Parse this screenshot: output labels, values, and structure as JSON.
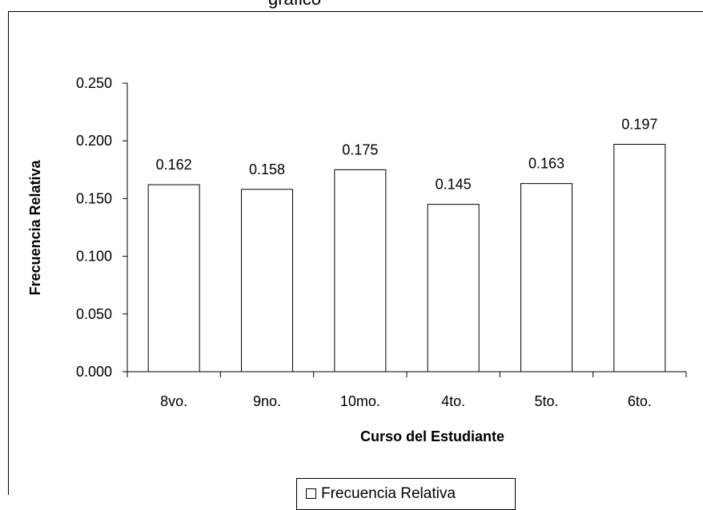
{
  "chart_data": {
    "type": "bar",
    "title": "gráfico",
    "categories": [
      "8vo.",
      "9no.",
      "10mo.",
      "4to.",
      "5to.",
      "6to."
    ],
    "series": [
      {
        "name": "Frecuencia Relativa",
        "values": [
          0.162,
          0.158,
          0.175,
          0.145,
          0.163,
          0.197
        ]
      }
    ],
    "data_labels": [
      "0.162",
      "0.158",
      "0.175",
      "0.145",
      "0.163",
      "0.197"
    ],
    "xlabel": "Curso del Estudiante",
    "ylabel": "Frecuencia Relativa",
    "ylim": [
      0,
      0.25
    ],
    "yticks": [
      0.0,
      0.05,
      0.1,
      0.15,
      0.2,
      0.25
    ],
    "ytick_labels": [
      "0.000",
      "0.050",
      "0.100",
      "0.150",
      "0.200",
      "0.250"
    ],
    "grid": false,
    "legend_position": "bottom",
    "bar_fill": "#ffffff",
    "bar_stroke": "#000000"
  }
}
